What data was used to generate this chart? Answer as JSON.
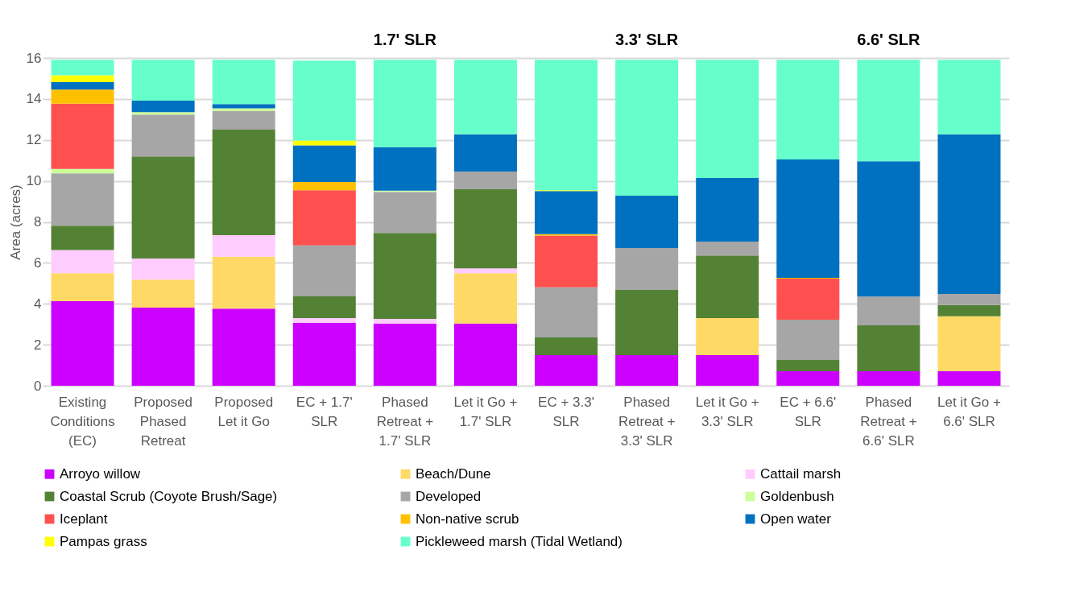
{
  "chart_data": {
    "type": "bar",
    "stacked": true,
    "ylabel": "Area (acres)",
    "categories": [
      "Existing Conditions (EC)",
      "Proposed Phased Retreat",
      "Proposed Let it Go",
      "EC + 1.7' SLR",
      "Phased Retreat + 1.7' SLR",
      "Let it Go + 1.7' SLR",
      "EC + 3.3' SLR",
      "Phased Retreat + 3.3' SLR",
      "Let it Go + 3.3' SLR",
      "EC + 6.6' SLR",
      "Phased Retreat + 6.6' SLR",
      "Let it Go + 6.6' SLR"
    ],
    "series": [
      {
        "name": "Arroyo willow",
        "color": "#cc00ff",
        "values": [
          4.13,
          3.81,
          3.76,
          3.08,
          3.04,
          3.04,
          1.49,
          1.49,
          1.49,
          0.71,
          0.71,
          0.71
        ]
      },
      {
        "name": "Beach/Dune",
        "color": "#ffd966",
        "values": [
          1.36,
          1.37,
          2.54,
          null,
          null,
          2.45,
          null,
          null,
          1.81,
          null,
          null,
          2.68
        ]
      },
      {
        "name": "Cattail marsh",
        "color": "#ffccff",
        "values": [
          1.13,
          1.03,
          1.05,
          0.22,
          0.22,
          0.24,
          null,
          null,
          null,
          null,
          null,
          null
        ]
      },
      {
        "name": "Coastal Scrub (Coyote Brush/Sage)",
        "color": "#548235",
        "values": [
          1.19,
          4.98,
          5.15,
          1.06,
          4.2,
          3.86,
          0.87,
          3.19,
          3.06,
          0.55,
          2.24,
          0.55
        ]
      },
      {
        "name": "Developed",
        "color": "#a6a6a6",
        "values": [
          2.56,
          2.05,
          0.91,
          2.49,
          2.0,
          0.87,
          2.45,
          2.04,
          0.68,
          1.96,
          1.4,
          0.54
        ]
      },
      {
        "name": "Goldenbush",
        "color": "#ccff99",
        "values": [
          0.21,
          0.12,
          0.13,
          null,
          0.06,
          null,
          null,
          null,
          null,
          null,
          null,
          null
        ]
      },
      {
        "name": "Iceplant",
        "color": "#ff5050",
        "values": [
          3.19,
          null,
          null,
          2.69,
          null,
          null,
          2.52,
          null,
          null,
          2.01,
          null,
          null
        ]
      },
      {
        "name": "Non-native scrub",
        "color": "#ffc000",
        "values": [
          0.69,
          null,
          null,
          0.41,
          null,
          null,
          0.07,
          null,
          null,
          0.04,
          null,
          null
        ]
      },
      {
        "name": "Open water",
        "color": "#0070c0",
        "values": [
          0.36,
          0.56,
          0.21,
          1.78,
          2.13,
          1.82,
          2.1,
          2.56,
          3.1,
          5.78,
          6.61,
          7.8
        ]
      },
      {
        "name": "Pampas grass",
        "color": "#ffff00",
        "values": [
          0.33,
          null,
          null,
          0.24,
          null,
          null,
          0.04,
          null,
          null,
          null,
          null,
          null
        ]
      },
      {
        "name": "Pickleweed marsh (Tidal Wetland)",
        "color": "#66ffcc",
        "values": [
          0.76,
          1.99,
          2.16,
          3.9,
          4.26,
          3.63,
          6.37,
          6.63,
          5.77,
          4.86,
          4.95,
          3.63
        ]
      }
    ],
    "ylim": [
      0,
      16
    ],
    "yticks": [
      0,
      2,
      4,
      6,
      8,
      10,
      12,
      14,
      16
    ],
    "grid": "y",
    "legend": "bottom",
    "annotations": [
      "1.7' SLR",
      "3.3' SLR",
      "6.6' SLR"
    ]
  }
}
